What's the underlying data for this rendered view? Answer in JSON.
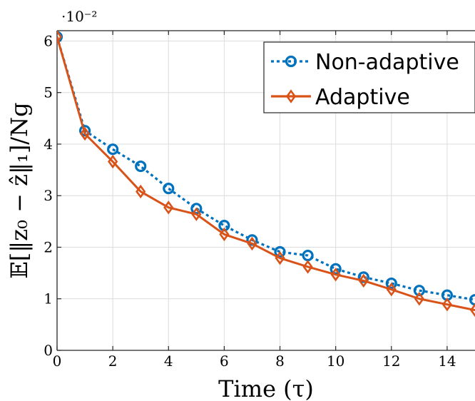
{
  "chart_data": {
    "type": "line",
    "xlabel": "Time (τ)",
    "ylabel": "𝔼[‖z₀ − ẑ‖₁]/Nɡ",
    "y_scale_label": "·10⁻²",
    "xlim": [
      0,
      15
    ],
    "ylim": [
      0,
      6.2
    ],
    "x_ticks": [
      0,
      2,
      4,
      6,
      8,
      10,
      12,
      14
    ],
    "y_ticks": [
      0,
      1,
      2,
      3,
      4,
      5,
      6
    ],
    "grid": true,
    "legend_position": "top-right",
    "x": [
      0,
      1,
      2,
      3,
      4,
      5,
      6,
      7,
      8,
      9,
      10,
      11,
      12,
      13,
      14,
      15
    ],
    "series": [
      {
        "name": "Non-adaptive",
        "color": "#0072BD",
        "line_style": "dotted",
        "marker": "circle",
        "values": [
          6.08,
          4.26,
          3.9,
          3.57,
          3.14,
          2.75,
          2.42,
          2.14,
          1.91,
          1.84,
          1.58,
          1.42,
          1.3,
          1.16,
          1.07,
          0.98
        ]
      },
      {
        "name": "Adaptive",
        "color": "#D95319",
        "line_style": "solid",
        "marker": "diamond",
        "values": [
          6.08,
          4.2,
          3.66,
          3.08,
          2.77,
          2.64,
          2.25,
          2.07,
          1.79,
          1.62,
          1.47,
          1.35,
          1.18,
          1.0,
          0.89,
          0.78
        ]
      }
    ]
  }
}
